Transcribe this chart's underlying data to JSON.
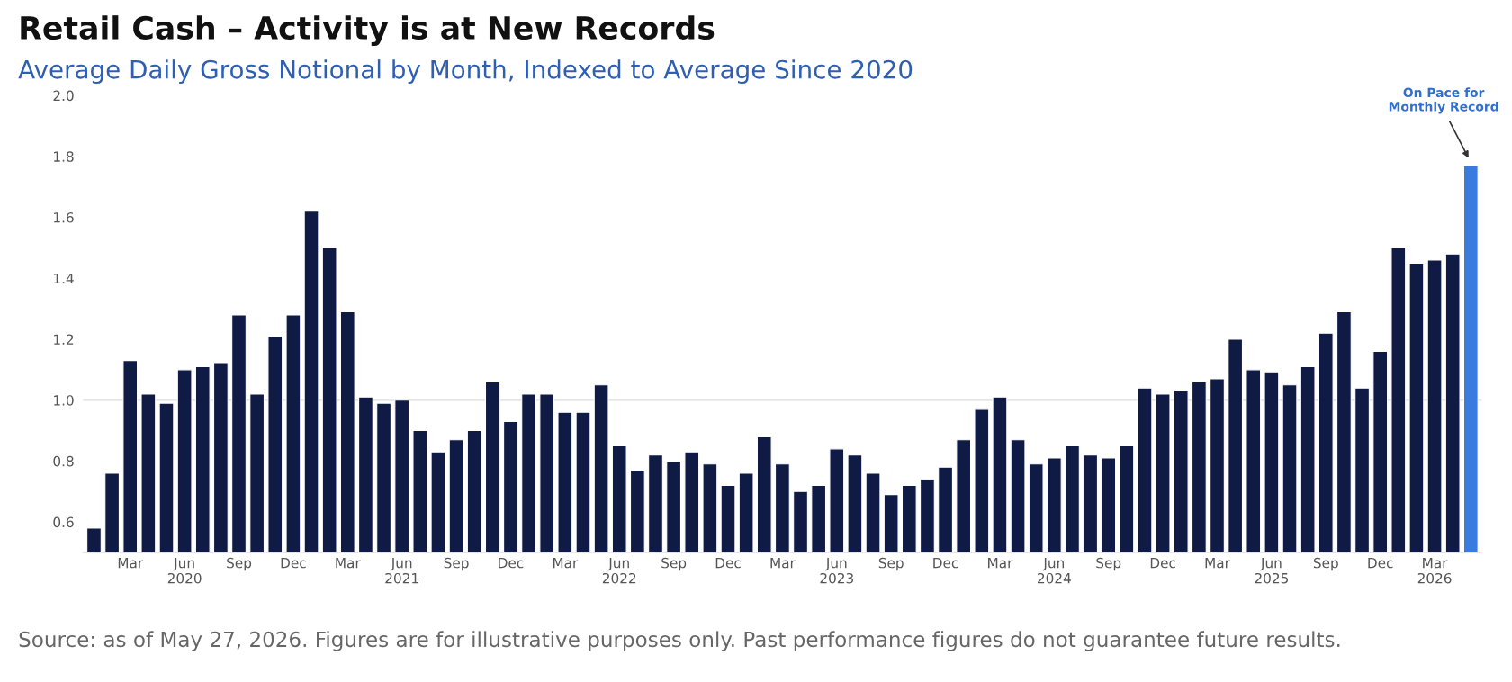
{
  "chart_data": {
    "type": "bar",
    "title": "Retail Cash – Activity is at New Records",
    "subtitle": "Average Daily Gross Notional by Month, Indexed to Average Since 2020",
    "categories": [
      null,
      null,
      "Mar",
      null,
      null,
      "Jun\n2020",
      null,
      null,
      "Sep",
      null,
      null,
      "Dec",
      null,
      null,
      "Mar",
      null,
      null,
      "Jun\n2021",
      null,
      null,
      "Sep",
      null,
      null,
      "Dec",
      null,
      null,
      "Mar",
      null,
      null,
      "Jun\n2022",
      null,
      null,
      "Sep",
      null,
      null,
      "Dec",
      null,
      null,
      "Mar",
      null,
      null,
      "Jun\n2023",
      null,
      null,
      "Sep",
      null,
      null,
      "Dec",
      null,
      null,
      "Mar",
      null,
      null,
      "Jun\n2024",
      null,
      null,
      "Sep",
      null,
      null,
      "Dec",
      null,
      null,
      "Mar",
      null,
      null,
      "Jun\n2025",
      null,
      null,
      "Sep",
      null,
      null,
      "Dec",
      null,
      null,
      "Mar\n2026",
      null,
      null
    ],
    "values": [
      0.58,
      0.76,
      1.13,
      1.02,
      0.99,
      1.1,
      1.11,
      1.12,
      1.28,
      1.02,
      1.21,
      1.28,
      1.62,
      1.5,
      1.29,
      1.01,
      0.99,
      1.0,
      0.9,
      0.83,
      0.87,
      0.9,
      1.06,
      0.93,
      1.02,
      1.02,
      0.96,
      0.96,
      1.05,
      0.85,
      0.77,
      0.82,
      0.8,
      0.83,
      0.79,
      0.72,
      0.76,
      0.88,
      0.79,
      0.7,
      0.72,
      0.84,
      0.82,
      0.76,
      0.69,
      0.72,
      0.74,
      0.78,
      0.87,
      0.97,
      1.01,
      0.87,
      0.79,
      0.81,
      0.85,
      0.82,
      0.81,
      0.85,
      1.04,
      1.02,
      1.03,
      1.06,
      1.07,
      1.2,
      1.1,
      1.09,
      1.05,
      1.11,
      1.22,
      1.29,
      1.04,
      1.16,
      1.5,
      1.45,
      1.46,
      1.48,
      1.77
    ],
    "colors": [
      "#0f1a45",
      "#0f1a45",
      "#0f1a45",
      "#0f1a45",
      "#0f1a45",
      "#0f1a45",
      "#0f1a45",
      "#0f1a45",
      "#0f1a45",
      "#0f1a45",
      "#0f1a45",
      "#0f1a45",
      "#0f1a45",
      "#0f1a45",
      "#0f1a45",
      "#0f1a45",
      "#0f1a45",
      "#0f1a45",
      "#0f1a45",
      "#0f1a45",
      "#0f1a45",
      "#0f1a45",
      "#0f1a45",
      "#0f1a45",
      "#0f1a45",
      "#0f1a45",
      "#0f1a45",
      "#0f1a45",
      "#0f1a45",
      "#0f1a45",
      "#0f1a45",
      "#0f1a45",
      "#0f1a45",
      "#0f1a45",
      "#0f1a45",
      "#0f1a45",
      "#0f1a45",
      "#0f1a45",
      "#0f1a45",
      "#0f1a45",
      "#0f1a45",
      "#0f1a45",
      "#0f1a45",
      "#0f1a45",
      "#0f1a45",
      "#0f1a45",
      "#0f1a45",
      "#0f1a45",
      "#0f1a45",
      "#0f1a45",
      "#0f1a45",
      "#0f1a45",
      "#0f1a45",
      "#0f1a45",
      "#0f1a45",
      "#0f1a45",
      "#0f1a45",
      "#0f1a45",
      "#0f1a45",
      "#0f1a45",
      "#0f1a45",
      "#0f1a45",
      "#0f1a45",
      "#0f1a45",
      "#0f1a45",
      "#0f1a45",
      "#0f1a45",
      "#0f1a45",
      "#0f1a45",
      "#0f1a45",
      "#0f1a45",
      "#0f1a45",
      "#0f1a45",
      "#0f1a45",
      "#0f1a45",
      "#0f1a45",
      "#3a7be0"
    ],
    "ylim": [
      0.5,
      2.0
    ],
    "yticks": [
      0.6,
      0.8,
      {
        "value": 1.0,
        "label": "1.0"
      },
      1.2,
      1.4,
      1.6,
      1.8,
      {
        "value": 2.0,
        "label": "2.0"
      }
    ],
    "ref_lines": [
      {
        "axis": "y",
        "value": 1.0,
        "color": "#e6e6e6"
      }
    ],
    "annotations": [
      "On Pace for\nMonthly Record",
      "Source: as of May 27, 2026. Figures are for illustrative purposes only. Past performance figures do not guarantee future results."
    ]
  }
}
